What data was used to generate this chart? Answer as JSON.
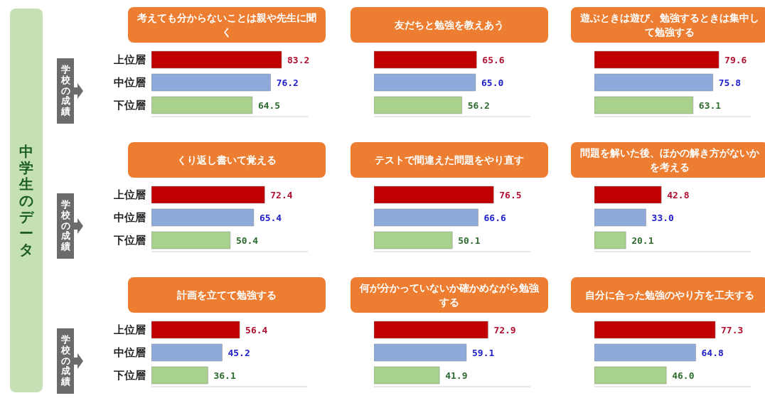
{
  "chart_data": [
    {
      "type": "bar",
      "orientation": "horizontal",
      "title": "考えても分からないことは親や先生に聞く",
      "ylabel": "学校の成績",
      "annotations": [
        "中学生のデータ"
      ],
      "categories": [
        "上位層",
        "中位層",
        "下位層"
      ],
      "values": [
        83.2,
        76.2,
        64.5
      ],
      "value_labels": [
        "83.2",
        "76.2",
        "64.5"
      ],
      "colors": [
        "#c00000",
        "#8eaadb",
        "#a9d18e"
      ],
      "xlim": [
        0,
        100
      ],
      "tick_labels": "y"
    },
    {
      "type": "bar",
      "orientation": "horizontal",
      "title": "友だちと勉強を教えあう",
      "categories": [
        null,
        null,
        null
      ],
      "values": [
        65.6,
        65.0,
        56.2
      ],
      "value_labels": [
        "65.6",
        "65.0",
        "56.2"
      ],
      "colors": [
        "#c00000",
        "#8eaadb",
        "#a9d18e"
      ],
      "xlim": [
        0,
        100
      ],
      "tick_labels": false
    },
    {
      "type": "bar",
      "orientation": "horizontal",
      "title": "遊ぶときは遊び、勉強するときは集中して勉強する",
      "categories": [
        null,
        null,
        null
      ],
      "values": [
        79.6,
        75.8,
        63.1
      ],
      "value_labels": [
        "79.6",
        "75.8",
        "63.1"
      ],
      "colors": [
        "#c00000",
        "#8eaadb",
        "#a9d18e"
      ],
      "xlim": [
        0,
        100
      ],
      "tick_labels": false
    },
    {
      "type": "bar",
      "orientation": "horizontal",
      "title": "くり返し書いて覚える",
      "ylabel": "学校の成績",
      "categories": [
        "上位層",
        "中位層",
        "下位層"
      ],
      "values": [
        72.4,
        65.4,
        50.4
      ],
      "value_labels": [
        "72.4",
        "65.4",
        "50.4"
      ],
      "colors": [
        "#c00000",
        "#8eaadb",
        "#a9d18e"
      ],
      "xlim": [
        0,
        100
      ],
      "tick_labels": "y"
    },
    {
      "type": "bar",
      "orientation": "horizontal",
      "title": "テストで間違えた問題をやり直す",
      "categories": [
        null,
        null,
        null
      ],
      "values": [
        76.5,
        66.6,
        50.1
      ],
      "value_labels": [
        "76.5",
        "66.6",
        "50.1"
      ],
      "colors": [
        "#c00000",
        "#8eaadb",
        "#a9d18e"
      ],
      "xlim": [
        0,
        100
      ],
      "tick_labels": false
    },
    {
      "type": "bar",
      "orientation": "horizontal",
      "title": "問題を解いた後、ほかの解き方がないかを考える",
      "categories": [
        null,
        null,
        null
      ],
      "values": [
        42.8,
        33.0,
        20.1
      ],
      "value_labels": [
        "42.8",
        "33.0",
        "20.1"
      ],
      "colors": [
        "#c00000",
        "#8eaadb",
        "#a9d18e"
      ],
      "xlim": [
        0,
        100
      ],
      "tick_labels": false
    },
    {
      "type": "bar",
      "orientation": "horizontal",
      "title": "計画を立てて勉強する",
      "ylabel": "学校の成績",
      "categories": [
        "上位層",
        "中位層",
        "下位層"
      ],
      "values": [
        56.4,
        45.2,
        36.1
      ],
      "value_labels": [
        "56.4",
        "45.2",
        "36.1"
      ],
      "colors": [
        "#c00000",
        "#8eaadb",
        "#a9d18e"
      ],
      "xlim": [
        0,
        100
      ],
      "tick_labels": "y"
    },
    {
      "type": "bar",
      "orientation": "horizontal",
      "title": "何が分かっていないか確かめながら勉強する",
      "categories": [
        null,
        null,
        null
      ],
      "values": [
        72.9,
        59.1,
        41.9
      ],
      "value_labels": [
        "72.9",
        "59.1",
        "41.9"
      ],
      "colors": [
        "#c00000",
        "#8eaadb",
        "#a9d18e"
      ],
      "xlim": [
        0,
        100
      ],
      "tick_labels": false
    },
    {
      "type": "bar",
      "orientation": "horizontal",
      "title": "自分に合った勉強のやり方を工夫する",
      "categories": [
        null,
        null,
        null
      ],
      "values": [
        77.3,
        64.8,
        46.0
      ],
      "value_labels": [
        "77.3",
        "64.8",
        "46.0"
      ],
      "colors": [
        "#c00000",
        "#8eaadb",
        "#a9d18e"
      ],
      "xlim": [
        0,
        100
      ],
      "tick_labels": false
    }
  ]
}
